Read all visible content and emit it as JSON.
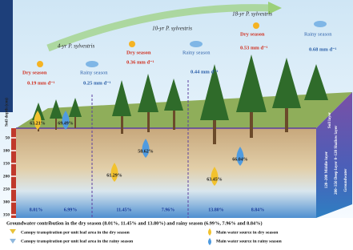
{
  "stands": [
    {
      "age": "4-yr P. sylvestris",
      "dry_label": "Dry season",
      "rainy_label": "Rainy season",
      "dry_T": "0.19 mm d⁻¹",
      "rainy_T": "0.25 mm d⁻¹",
      "dry_source": "63.21%",
      "rainy_source": "69.49%",
      "dry_gw": "8.01%",
      "rainy_gw": "6.99%"
    },
    {
      "age": "10-yr P. sylvestris",
      "dry_label": "Dry season",
      "rainy_label": "Rainy season",
      "dry_T": "0.36 mm d⁻¹",
      "rainy_T": "0.44 mm d⁻¹",
      "dry_source": "61.29%",
      "rainy_source": "58.62%",
      "dry_gw": "11.45%",
      "rainy_gw": "7.96%"
    },
    {
      "age": "18-yr P. sylvestris",
      "dry_label": "Dry season",
      "rainy_label": "Rainy season",
      "dry_T": "0.53 mm d⁻¹",
      "rainy_T": "0.68 mm d⁻¹",
      "dry_source": "63.45%",
      "rainy_source": "66.04%",
      "dry_gw": "13.80%",
      "rainy_gw": "8.84%"
    }
  ],
  "axis": {
    "label": "Soil depth (cm)",
    "ticks": [
      "50",
      "100",
      "150",
      "200",
      "250",
      "300",
      "350"
    ]
  },
  "layers": {
    "title": "Soil layer",
    "shallow": "0–120 Shallow layer",
    "middle": "120–200 Middle layer",
    "deep": "200–350 Deep layer",
    "groundwater": "Groundwater"
  },
  "caption": "Groundwater contribution in the dry season (8.01%, 11.45% and 13.80%) and rainy season (6.99%, 7.96% and 8.84%)",
  "legend": {
    "dry_T": "Canopy transpiration per unit leaf area in the dry season",
    "rainy_T": "Canopy transpiration per unit leaf area in the rainy season",
    "dry_source": "Main water source in dry season",
    "rainy_source": "Main water source in rainy season"
  }
}
